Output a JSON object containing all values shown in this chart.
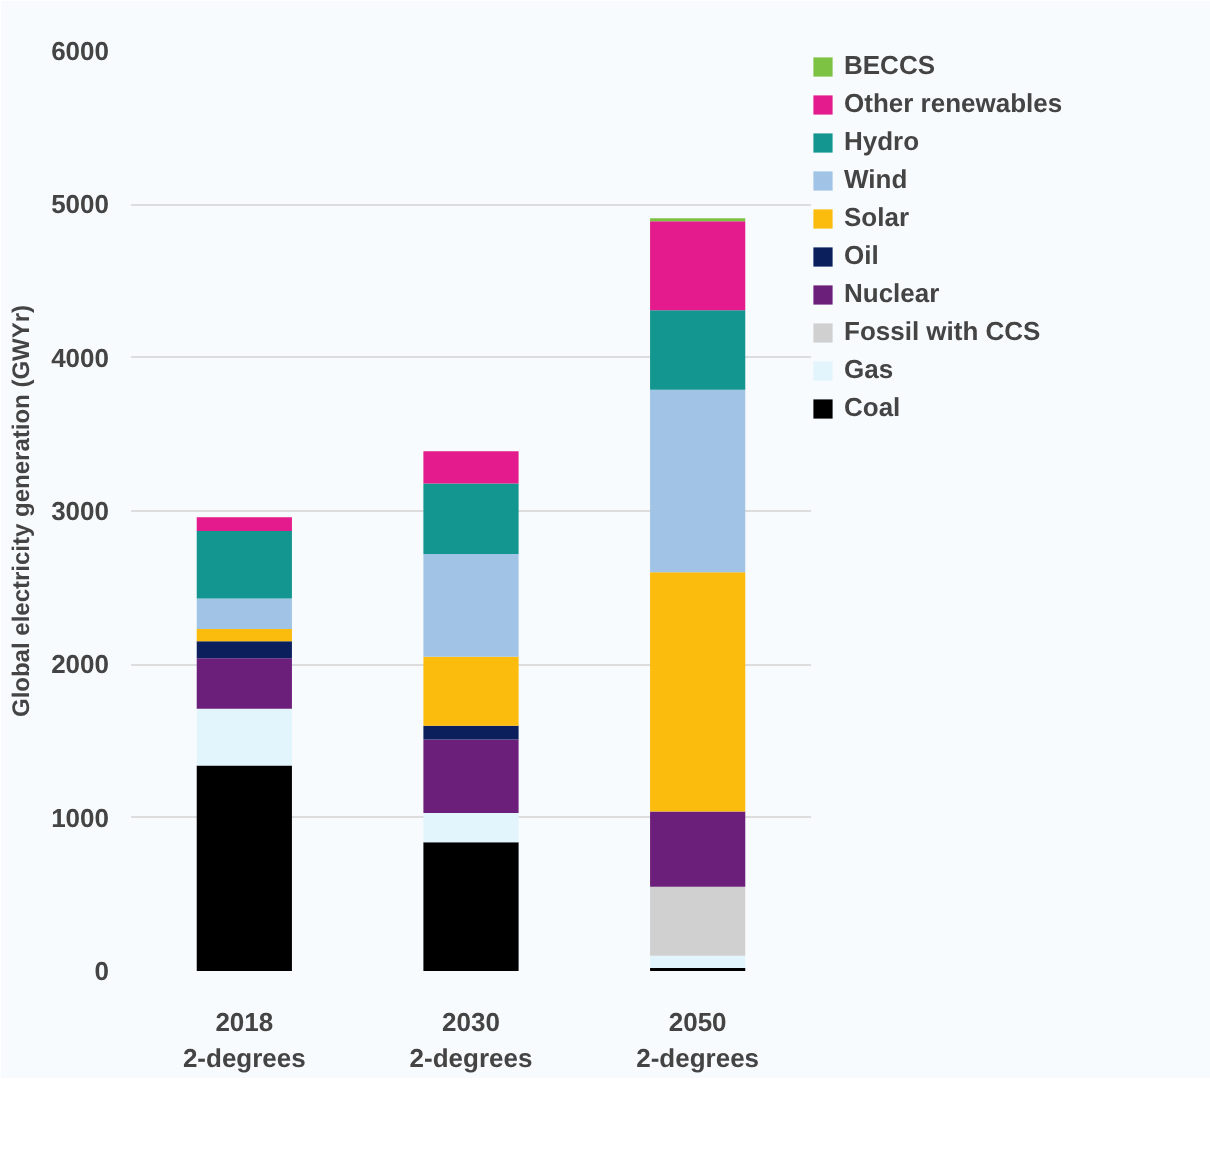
{
  "chart_data": {
    "type": "bar",
    "stacked": true,
    "ylabel": "Global electricity generation (GWYr)",
    "categories": [
      "2018\n2-degrees",
      "2030\n2-degrees",
      "2050\n2-degrees"
    ],
    "series": [
      {
        "name": "Coal",
        "color": "#000000",
        "values": [
          1340,
          840,
          20
        ]
      },
      {
        "name": "Gas",
        "color": "#e3f5fc",
        "values": [
          370,
          190,
          80
        ]
      },
      {
        "name": "Fossil with CCS",
        "color": "#d0d0d0",
        "values": [
          0,
          0,
          450
        ]
      },
      {
        "name": "Nuclear",
        "color": "#6b1f7b",
        "values": [
          330,
          480,
          490
        ]
      },
      {
        "name": "Oil",
        "color": "#0b1f5c",
        "values": [
          110,
          90,
          0
        ]
      },
      {
        "name": "Solar",
        "color": "#fbbc0e",
        "values": [
          80,
          450,
          1560
        ]
      },
      {
        "name": "Wind",
        "color": "#a0c3e6",
        "values": [
          200,
          670,
          1190
        ]
      },
      {
        "name": "Hydro",
        "color": "#12968f",
        "values": [
          440,
          460,
          520
        ]
      },
      {
        "name": "Other renewables",
        "color": "#e31b8c",
        "values": [
          90,
          210,
          580
        ]
      },
      {
        "name": "BECCS",
        "color": "#7dc242",
        "values": [
          0,
          0,
          20
        ]
      }
    ],
    "ylim": [
      0,
      6000
    ],
    "yticks": [
      0,
      1000,
      2000,
      3000,
      4000,
      5000,
      6000
    ],
    "grid": "y",
    "legend": "right"
  }
}
